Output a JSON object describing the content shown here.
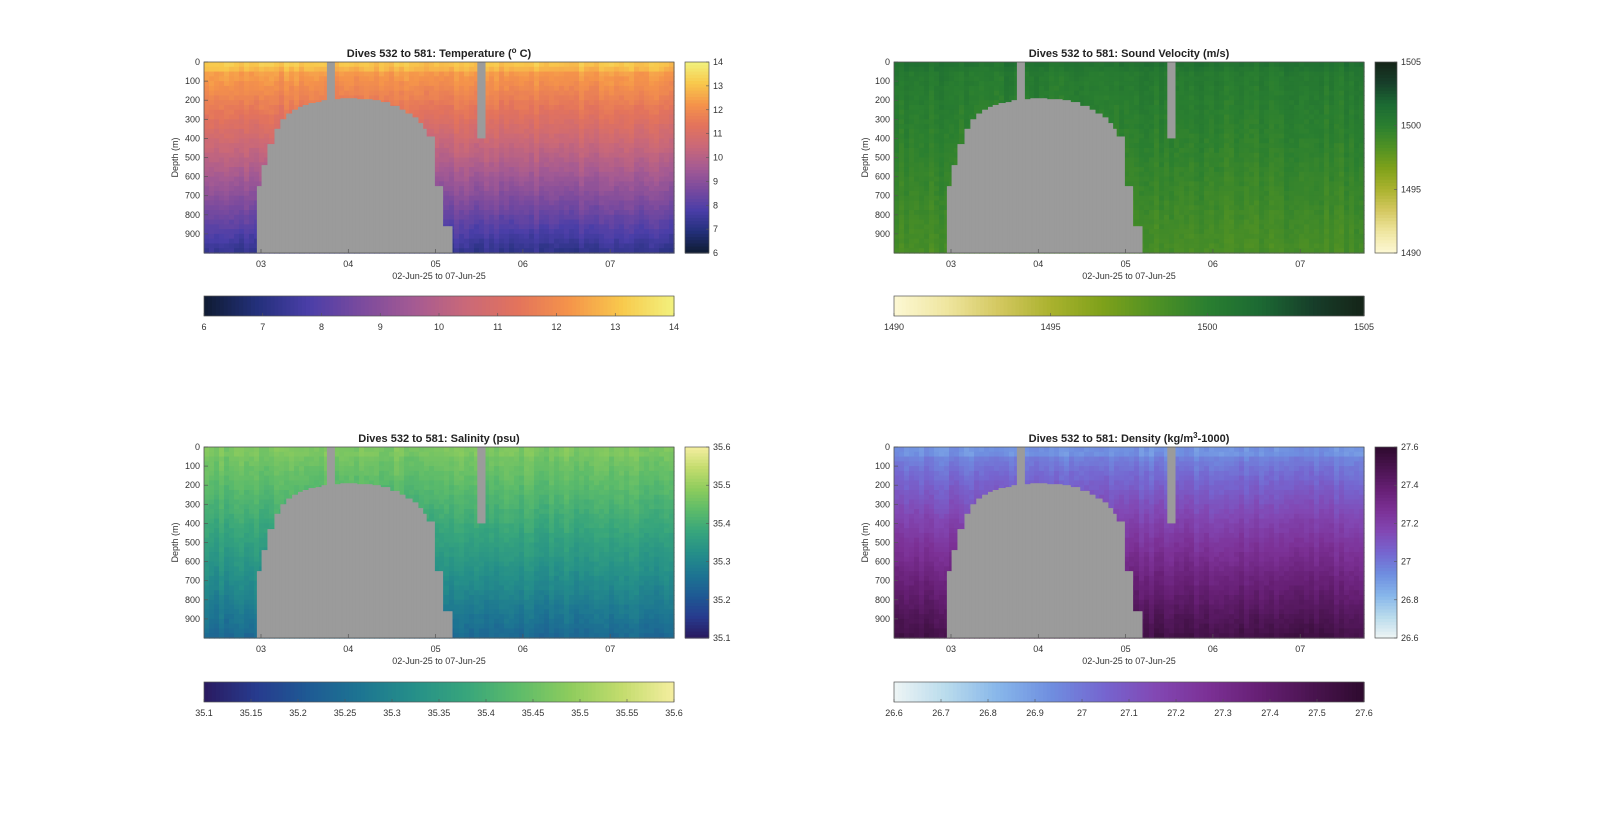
{
  "chart_data": [
    {
      "type": "heatmap",
      "title": "Dives 532 to 581: Temperature (° C)",
      "title_prefix": "Dives 532 to 581: Temperature (",
      "title_sup": "o",
      "title_suffix": " C)",
      "xlabel": "02-Jun-25 to 07-Jun-25",
      "ylabel": "Depth (m)",
      "x_ticks": [
        "03",
        "04",
        "05",
        "06",
        "07"
      ],
      "y_ticks": [
        0,
        100,
        200,
        300,
        400,
        500,
        600,
        700,
        800,
        900
      ],
      "ylim": [
        0,
        1000
      ],
      "colorbar_range": [
        6,
        14
      ],
      "colorbar_side_ticks": [
        6,
        7,
        8,
        9,
        10,
        11,
        12,
        13,
        14
      ],
      "colorbar_bottom_ticks": [
        "6",
        "7",
        "8",
        "9",
        "10",
        "11",
        "12",
        "13",
        "14"
      ],
      "colormap": [
        "#0f1b32",
        "#23307a",
        "#4a3ea8",
        "#7a4a9e",
        "#a45a93",
        "#c96879",
        "#e3735c",
        "#f5944a",
        "#f8c94c",
        "#f2f27e"
      ],
      "profile": {
        "surface": 12.6,
        "bottom": 7.2
      },
      "no_data_color": "#9b9b9b"
    },
    {
      "type": "heatmap",
      "title": "Dives 532 to 581: Sound Velocity (m/s)",
      "title_prefix": "Dives 532 to 581: Sound Velocity (m/s)",
      "title_sup": "",
      "title_suffix": "",
      "xlabel": "02-Jun-25 to 07-Jun-25",
      "ylabel": "Depth (m)",
      "x_ticks": [
        "03",
        "04",
        "05",
        "06",
        "07"
      ],
      "y_ticks": [
        0,
        100,
        200,
        300,
        400,
        500,
        600,
        700,
        800,
        900
      ],
      "ylim": [
        0,
        1000
      ],
      "colorbar_range": [
        1490,
        1505
      ],
      "colorbar_side_ticks": [
        1490,
        1495,
        1500,
        1505
      ],
      "colorbar_bottom_ticks": [
        "1490",
        "1495",
        "1500",
        "1505"
      ],
      "colormap": [
        "#fdf8d4",
        "#efe6a0",
        "#d4c860",
        "#aab22e",
        "#7ea11a",
        "#4f9124",
        "#2a7f30",
        "#1c6a33",
        "#173f2a",
        "#152418"
      ],
      "profile": {
        "surface": 1500.5,
        "bottom": 1498.6
      },
      "no_data_color": "#9b9b9b"
    },
    {
      "type": "heatmap",
      "title": "Dives 532 to 581: Salinity (psu)",
      "title_prefix": "Dives 532 to 581: Salinity (psu)",
      "title_sup": "",
      "title_suffix": "",
      "xlabel": "02-Jun-25 to 07-Jun-25",
      "ylabel": "Depth (m)",
      "x_ticks": [
        "03",
        "04",
        "05",
        "06",
        "07"
      ],
      "y_ticks": [
        0,
        100,
        200,
        300,
        400,
        500,
        600,
        700,
        800,
        900
      ],
      "ylim": [
        0,
        1000
      ],
      "colorbar_range": [
        35.1,
        35.6
      ],
      "colorbar_side_ticks": [
        35.1,
        35.2,
        35.3,
        35.4,
        35.5,
        35.6
      ],
      "colorbar_bottom_ticks": [
        "35.1",
        "35.15",
        "35.2",
        "35.25",
        "35.3",
        "35.35",
        "35.4",
        "35.45",
        "35.5",
        "35.55",
        "35.6"
      ],
      "colormap": [
        "#2a1a60",
        "#273b8e",
        "#1e5a94",
        "#1d7592",
        "#258f89",
        "#37a57c",
        "#5cbb6a",
        "#8dcc5d",
        "#c3dc6d",
        "#f5eea0"
      ],
      "profile": {
        "surface": 35.47,
        "bottom": 35.24
      },
      "no_data_color": "#9b9b9b"
    },
    {
      "type": "heatmap",
      "title": "Dives 532 to 581: Density (kg/m³-1000)",
      "title_prefix": "Dives 532 to 581: Density (kg/m",
      "title_sup": "3",
      "title_suffix": "-1000)",
      "xlabel": "02-Jun-25 to 07-Jun-25",
      "ylabel": "Depth (m)",
      "x_ticks": [
        "03",
        "04",
        "05",
        "06",
        "07"
      ],
      "y_ticks": [
        0,
        100,
        200,
        300,
        400,
        500,
        600,
        700,
        800,
        900
      ],
      "ylim": [
        0,
        1000
      ],
      "colorbar_range": [
        26.6,
        27.6
      ],
      "colorbar_side_ticks": [
        26.6,
        26.8,
        27,
        27.2,
        27.4,
        27.6
      ],
      "colorbar_side_labels": [
        "26.6",
        "26.8",
        "27",
        "27.2",
        "27.4",
        "27.6"
      ],
      "colorbar_bottom_ticks": [
        "26.6",
        "26.7",
        "26.8",
        "26.9",
        "27",
        "27.1",
        "27.2",
        "27.3",
        "27.4",
        "27.5",
        "27.6"
      ],
      "colormap": [
        "#eef5f5",
        "#b9dbec",
        "#87b6ea",
        "#6f8ee0",
        "#7566d0",
        "#8248b4",
        "#7c3196",
        "#661f74",
        "#4a1450",
        "#2e0a2e"
      ],
      "profile": {
        "surface": 26.92,
        "bottom": 27.52
      },
      "no_data_color": "#9b9b9b"
    }
  ]
}
